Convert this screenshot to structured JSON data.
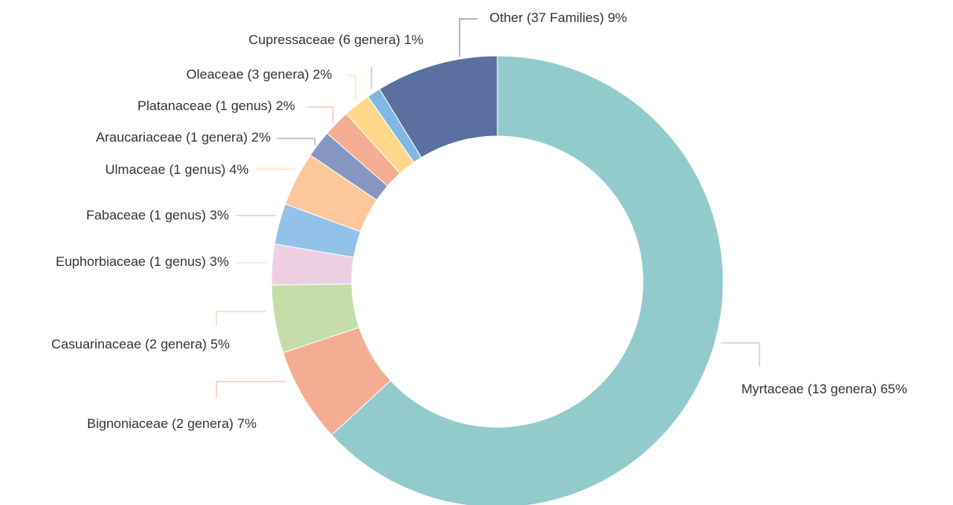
{
  "chart_data": {
    "type": "donut",
    "categories": [
      "Myrtaceae (13 genera)",
      "Bignoniaceae (2 genera)",
      "Casuarinaceae (2 genera)",
      "Euphorbiaceae (1 genus)",
      "Fabaceae (1 genus)",
      "Ulmaceae (1 genus)",
      "Araucariaceae (1 genera)",
      "Platanaceae (1 genus)",
      "Oleaceae (3 genera)",
      "Cupressaceae (6 genera)",
      "Other (37 Families)"
    ],
    "values": [
      65,
      7,
      5,
      3,
      3,
      4,
      2,
      2,
      2,
      1,
      9
    ],
    "value_labels": [
      "65%",
      "7%",
      "5%",
      "3%",
      "3%",
      "4%",
      "2%",
      "2%",
      "2%",
      "1%",
      "9%"
    ],
    "colors": [
      "#93cbcc",
      "#f4ad93",
      "#c5dda9",
      "#edcfe3",
      "#92c1e9",
      "#fcc89b",
      "#8796c0",
      "#f4ad93",
      "#fdd88b",
      "#7eb8e3",
      "#5b6fa0"
    ]
  }
}
